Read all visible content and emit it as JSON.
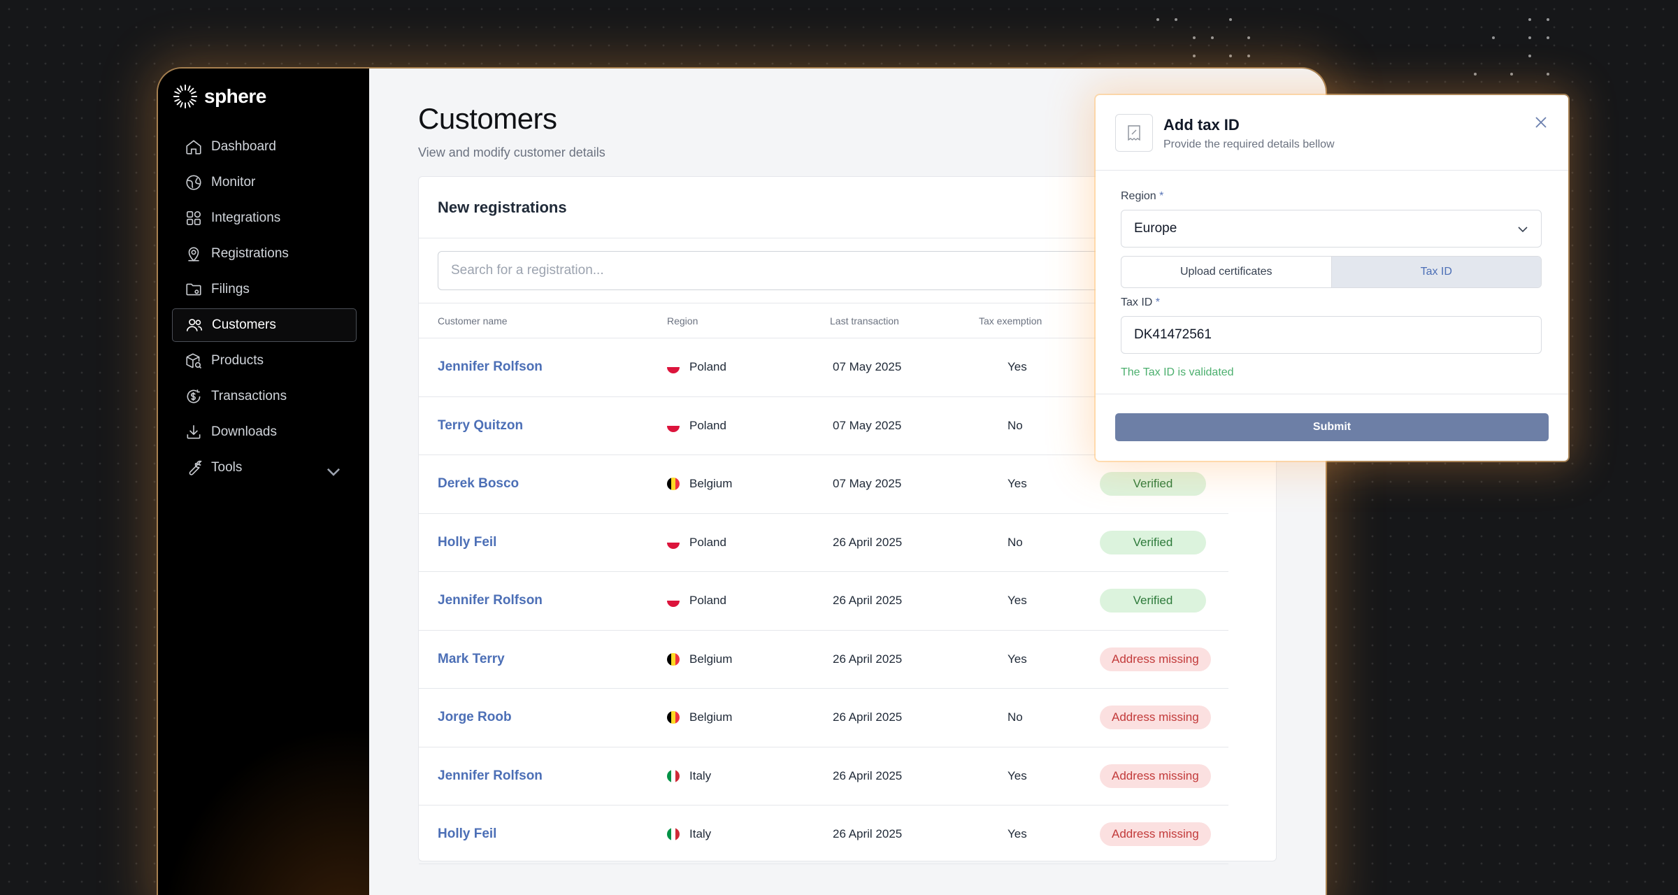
{
  "brand": {
    "name": "sphere"
  },
  "sidebar": {
    "items": [
      {
        "label": "Dashboard",
        "icon": "home-icon"
      },
      {
        "label": "Monitor",
        "icon": "globe-icon"
      },
      {
        "label": "Integrations",
        "icon": "grid-icon"
      },
      {
        "label": "Registrations",
        "icon": "location-pin-icon"
      },
      {
        "label": "Filings",
        "icon": "folder-icon"
      },
      {
        "label": "Customers",
        "icon": "users-icon",
        "active": true
      },
      {
        "label": "Products",
        "icon": "package-icon"
      },
      {
        "label": "Transactions",
        "icon": "dollar-circle-icon"
      },
      {
        "label": "Downloads",
        "icon": "download-icon"
      },
      {
        "label": "Tools",
        "icon": "wrench-icon",
        "expandable": true
      }
    ]
  },
  "page": {
    "title": "Customers",
    "subtitle": "View and modify customer details"
  },
  "registrations": {
    "title": "New registrations",
    "search_placeholder": "Search for a registration...",
    "columns": [
      "Customer name",
      "Region",
      "Last transaction",
      "Tax exemption"
    ],
    "rows": [
      {
        "name": "Jennifer Rolfson",
        "region": "Poland",
        "flag": "poland",
        "date": "07 May 2025",
        "exempt": "Yes",
        "status": ""
      },
      {
        "name": "Terry Quitzon",
        "region": "Poland",
        "flag": "poland",
        "date": "07 May 2025",
        "exempt": "No",
        "status": ""
      },
      {
        "name": "Derek Bosco",
        "region": "Belgium",
        "flag": "belgium",
        "date": "07 May 2025",
        "exempt": "Yes",
        "status": "Verified",
        "status_type": "ok"
      },
      {
        "name": "Holly Feil",
        "region": "Poland",
        "flag": "poland",
        "date": "26 April 2025",
        "exempt": "No",
        "status": "Verified",
        "status_type": "ok"
      },
      {
        "name": "Jennifer Rolfson",
        "region": "Poland",
        "flag": "poland",
        "date": "26 April 2025",
        "exempt": "Yes",
        "status": "Verified",
        "status_type": "ok"
      },
      {
        "name": "Mark Terry",
        "region": "Belgium",
        "flag": "belgium",
        "date": "26 April 2025",
        "exempt": "Yes",
        "status": "Address missing",
        "status_type": "bad"
      },
      {
        "name": "Jorge Roob",
        "region": "Belgium",
        "flag": "belgium",
        "date": "26 April 2025",
        "exempt": "No",
        "status": "Address missing",
        "status_type": "bad"
      },
      {
        "name": "Jennifer Rolfson",
        "region": "Italy",
        "flag": "italy",
        "date": "26 April 2025",
        "exempt": "Yes",
        "status": "Address missing",
        "status_type": "bad"
      },
      {
        "name": "Holly Feil",
        "region": "Italy",
        "flag": "italy",
        "date": "26 April 2025",
        "exempt": "Yes",
        "status": "Address missing",
        "status_type": "bad"
      }
    ]
  },
  "modal": {
    "title": "Add tax ID",
    "subtitle": "Provide the required details bellow",
    "region_label": "Region",
    "region_value": "Europe",
    "tabs": [
      "Upload certificates",
      "Tax ID"
    ],
    "active_tab": "Tax ID",
    "tax_id_label": "Tax ID",
    "required_mark": "*",
    "tax_id_value": "DK41472561",
    "validation_message": "The Tax ID is validated",
    "submit_label": "Submit"
  },
  "colors": {
    "link": "#4c6fb6",
    "verified_bg": "#dcf3dd",
    "verified_text": "#2d7a3a",
    "missing_bg": "#fbe0e0",
    "missing_text": "#c23a3a",
    "submit_bg": "#6d7fa6",
    "glow": "#ffa046"
  }
}
